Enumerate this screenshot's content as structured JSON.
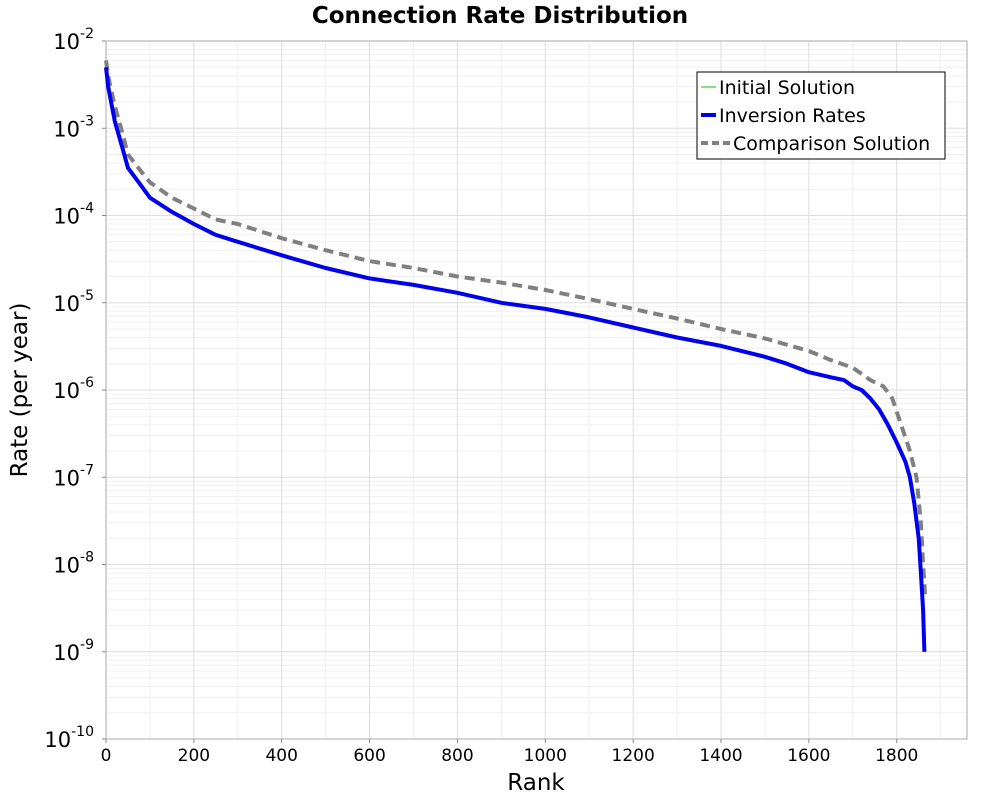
{
  "chart_data": {
    "type": "line",
    "title": "Connection Rate Distribution",
    "xlabel": "Rank",
    "ylabel": "Rate (per year)",
    "xlim": [
      0,
      1960
    ],
    "ylim": [
      1e-10,
      0.01
    ],
    "y_scale": "log",
    "x_ticks": [
      "0",
      "200",
      "400",
      "600",
      "800",
      "1000",
      "1200",
      "1400",
      "1600",
      "1800"
    ],
    "y_ticks": [
      {
        "base": "10",
        "exp": "-2"
      },
      {
        "base": "10",
        "exp": "-3"
      },
      {
        "base": "10",
        "exp": "-4"
      },
      {
        "base": "10",
        "exp": "-5"
      },
      {
        "base": "10",
        "exp": "-6"
      },
      {
        "base": "10",
        "exp": "-7"
      },
      {
        "base": "10",
        "exp": "-8"
      },
      {
        "base": "10",
        "exp": "-9"
      },
      {
        "base": "10",
        "exp": "-10"
      }
    ],
    "grid": true,
    "legend_position": "top-right",
    "series": [
      {
        "name": "Initial Solution",
        "color": "#33cc33",
        "style": "thin-solid",
        "x": [],
        "y": []
      },
      {
        "name": "Inversion Rates",
        "color": "#0000ee",
        "style": "thick-solid",
        "x": [
          0,
          5,
          10,
          20,
          30,
          50,
          80,
          100,
          150,
          200,
          250,
          300,
          400,
          500,
          600,
          700,
          800,
          900,
          1000,
          1100,
          1200,
          1300,
          1400,
          1500,
          1550,
          1600,
          1650,
          1680,
          1700,
          1720,
          1740,
          1760,
          1780,
          1800,
          1820,
          1830,
          1840,
          1850,
          1855,
          1860,
          1863
        ],
        "y": [
          0.005,
          0.003,
          0.0022,
          0.0012,
          0.0008,
          0.00035,
          0.00022,
          0.00016,
          0.00011,
          8e-05,
          6e-05,
          5e-05,
          3.5e-05,
          2.5e-05,
          1.9e-05,
          1.6e-05,
          1.3e-05,
          1e-05,
          8.5e-06,
          6.8e-06,
          5.2e-06,
          4e-06,
          3.2e-06,
          2.4e-06,
          2e-06,
          1.6e-06,
          1.4e-06,
          1.3e-06,
          1.1e-06,
          1e-06,
          8e-07,
          6e-07,
          4e-07,
          2.5e-07,
          1.5e-07,
          1e-07,
          5e-08,
          2e-08,
          8e-09,
          3e-09,
          1e-09
        ]
      },
      {
        "name": "Comparison Solution",
        "color": "#808080",
        "style": "dashed",
        "x": [
          0,
          5,
          10,
          20,
          30,
          50,
          80,
          100,
          150,
          200,
          250,
          300,
          400,
          500,
          600,
          700,
          800,
          900,
          1000,
          1100,
          1200,
          1300,
          1400,
          1500,
          1600,
          1650,
          1700,
          1740,
          1770,
          1790,
          1810,
          1830,
          1845,
          1855,
          1860,
          1865
        ],
        "y": [
          0.006,
          0.004,
          0.003,
          0.0018,
          0.0012,
          0.0005,
          0.00032,
          0.00024,
          0.00016,
          0.00012,
          9e-05,
          8e-05,
          5.5e-05,
          4e-05,
          3e-05,
          2.5e-05,
          2e-05,
          1.7e-05,
          1.4e-05,
          1.1e-05,
          8.5e-06,
          6.6e-06,
          5e-06,
          3.9e-06,
          2.8e-06,
          2.2e-06,
          1.8e-06,
          1.3e-06,
          1.1e-06,
          8e-07,
          4e-07,
          2e-07,
          1e-07,
          3e-08,
          1e-08,
          4e-09
        ]
      }
    ]
  }
}
